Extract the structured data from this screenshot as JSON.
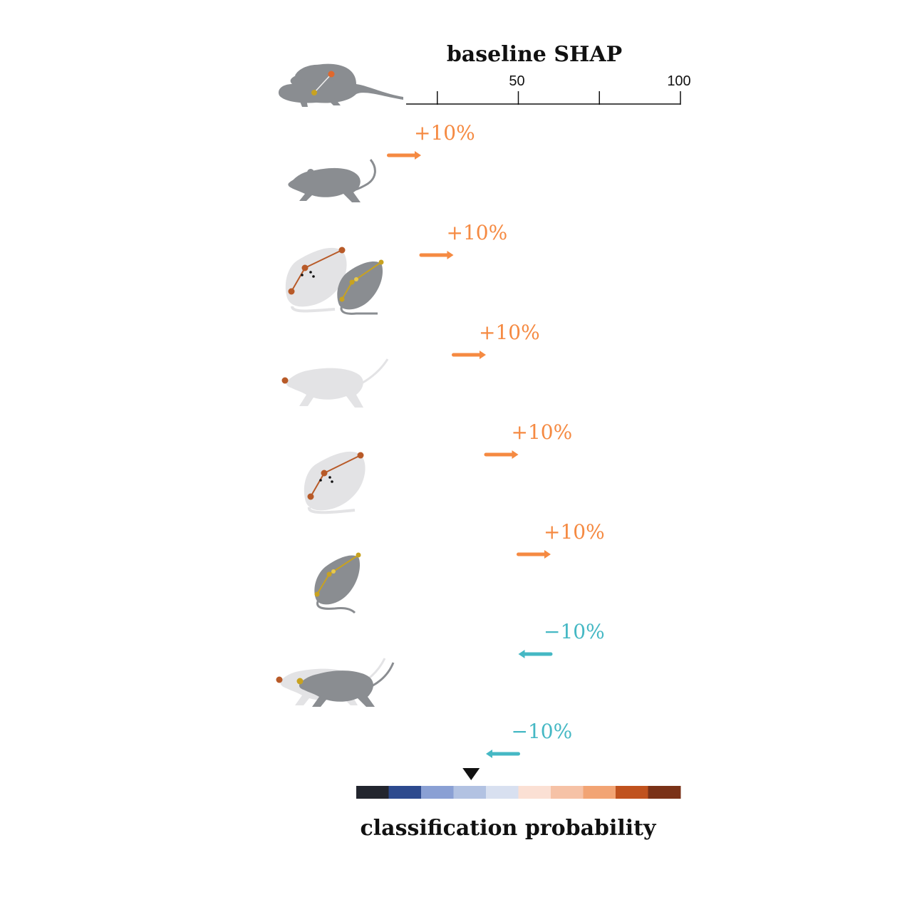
{
  "header": {
    "title": "baseline SHAP"
  },
  "axis": {
    "min": 0,
    "max": 100,
    "tick_values": [
      25,
      50,
      75,
      100
    ],
    "tick_labels": [
      {
        "value": 50,
        "label": "50"
      },
      {
        "value": 100,
        "label": "100"
      }
    ]
  },
  "colors": {
    "positive": "#f58a42",
    "negative": "#45b8c4",
    "rat_dark": "#8a8d91",
    "rat_light": "#e3e3e5",
    "keypoint_orange": "#b85a28",
    "keypoint_gold": "#c8a220"
  },
  "steps": [
    {
      "label": "+10%",
      "direction": "positive",
      "start": 10,
      "end": 20,
      "icon": "walking-rat-icon"
    },
    {
      "label": "+10%",
      "direction": "positive",
      "start": 20,
      "end": 30,
      "icon": "two-rats-rearing-icon"
    },
    {
      "label": "+10%",
      "direction": "positive",
      "start": 30,
      "end": 40,
      "icon": "nose-point-rat-icon"
    },
    {
      "label": "+10%",
      "direction": "positive",
      "start": 40,
      "end": 50,
      "icon": "light-rat-keypoints-icon"
    },
    {
      "label": "+10%",
      "direction": "positive",
      "start": 50,
      "end": 60,
      "icon": "dark-rat-keypoints-icon"
    },
    {
      "label": "−10%",
      "direction": "negative",
      "start": 60,
      "end": 50,
      "icon": "rat-approach-icon"
    },
    {
      "label": "−10%",
      "direction": "negative",
      "start": 50,
      "end": 40,
      "icon": ""
    }
  ],
  "colorbar": {
    "title": "classification probability",
    "marker_value": 35,
    "colors": [
      "#22252e",
      "#2d4a8e",
      "#8aa0d4",
      "#b2c2e2",
      "#d8e0f0",
      "#fbe0d4",
      "#f6c2a6",
      "#f2a474",
      "#c0521e",
      "#7a3218"
    ]
  }
}
